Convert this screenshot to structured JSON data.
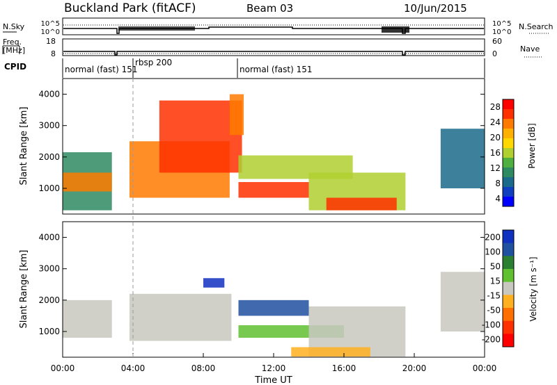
{
  "header": {
    "title": "Buckland Park (fitACF)",
    "beam": "Beam 03",
    "date": "10/Jun/2015"
  },
  "top_panels": {
    "nsky_label": "N.Sky",
    "nsearch_label": "N.Search",
    "nsky_ticks": [
      "10^5",
      "10^0"
    ],
    "freq_label_line1": "Freq.",
    "freq_label_line2": "[MHz]",
    "freq_ticks": [
      "18",
      "8"
    ],
    "nave_label": "Nave",
    "nave_ticks": [
      "60",
      "0"
    ],
    "cpid_label": "CPID",
    "cpid_segments": [
      {
        "label": "normal (fast) 151",
        "start_h": 0.0,
        "end_h": 3.8
      },
      {
        "label": "rbsp 200",
        "start_h": 3.8,
        "end_h": 10.0
      },
      {
        "label": "normal (fast) 151",
        "start_h": 10.0,
        "end_h": 24.0
      }
    ]
  },
  "chart_data": [
    {
      "type": "heatmap",
      "name": "power",
      "ylabel": "Slant Range [km]",
      "y_ticks": [
        1000,
        2000,
        3000,
        4000
      ],
      "ylim": [
        180,
        4500
      ],
      "xlim_hours": [
        0,
        24
      ],
      "colorbar_label": "Power [dB]",
      "colorbar_ticks": [
        "28",
        "24",
        "20",
        "16",
        "12",
        "8",
        "4"
      ],
      "colorbar_colors": [
        "#ff0000",
        "#ff3000",
        "#ff7a00",
        "#ffb000",
        "#ffd800",
        "#b0d030",
        "#4fb040",
        "#2e8a60",
        "#1a6a8a",
        "#1040c0",
        "#0000ff"
      ],
      "regions": [
        {
          "h0": 0.0,
          "h1": 2.8,
          "r0": 300,
          "r1": 2150,
          "level": 0.35
        },
        {
          "h0": 0.0,
          "h1": 2.8,
          "r0": 900,
          "r1": 1500,
          "level": 0.8
        },
        {
          "h0": 3.8,
          "h1": 9.5,
          "r0": 700,
          "r1": 2500,
          "level": 0.8
        },
        {
          "h0": 5.5,
          "h1": 10.2,
          "r0": 1500,
          "r1": 3800,
          "level": 0.92
        },
        {
          "h0": 9.5,
          "h1": 10.3,
          "r0": 2700,
          "r1": 4000,
          "level": 0.85
        },
        {
          "h0": 10.0,
          "h1": 16.5,
          "r0": 1300,
          "r1": 2050,
          "level": 0.5
        },
        {
          "h0": 10.0,
          "h1": 14.0,
          "r0": 700,
          "r1": 1200,
          "level": 0.9
        },
        {
          "h0": 14.0,
          "h1": 19.5,
          "r0": 300,
          "r1": 1500,
          "level": 0.55
        },
        {
          "h0": 15.0,
          "h1": 19.0,
          "r0": 300,
          "r1": 700,
          "level": 0.95
        },
        {
          "h0": 21.5,
          "h1": 24.0,
          "r0": 1000,
          "r1": 2900,
          "level": 0.2
        }
      ]
    },
    {
      "type": "heatmap",
      "name": "velocity",
      "ylabel": "Slant Range [km]",
      "xlabel": "Time UT",
      "x_ticks": [
        "00:00",
        "04:00",
        "08:00",
        "12:00",
        "16:00",
        "20:00",
        "00:00"
      ],
      "y_ticks": [
        1000,
        2000,
        3000,
        4000
      ],
      "ylim": [
        180,
        4500
      ],
      "xlim_hours": [
        0,
        24
      ],
      "colorbar_label": "Velocity [m s⁻¹]",
      "colorbar_ticks": [
        "200",
        "100",
        "50",
        "15",
        "-15",
        "-50",
        "-100",
        "-200"
      ],
      "colorbar_colors": [
        "#1030c0",
        "#2050a0",
        "#2a8030",
        "#60c030",
        "#c8c8c0",
        "#ffb020",
        "#ff7000",
        "#ff3000",
        "#ff0000"
      ],
      "regions": [
        {
          "h0": 0.0,
          "h1": 2.8,
          "r0": 800,
          "r1": 2000,
          "color": "#c8c8c0"
        },
        {
          "h0": 3.8,
          "h1": 9.6,
          "r0": 700,
          "r1": 2200,
          "color": "#c8c8c0"
        },
        {
          "h0": 8.0,
          "h1": 9.2,
          "r0": 2400,
          "r1": 2700,
          "color": "#1030c0"
        },
        {
          "h0": 10.0,
          "h1": 14.0,
          "r0": 1500,
          "r1": 2000,
          "color": "#2050a0"
        },
        {
          "h0": 10.0,
          "h1": 16.0,
          "r0": 800,
          "r1": 1200,
          "color": "#60c030"
        },
        {
          "h0": 14.0,
          "h1": 19.5,
          "r0": 200,
          "r1": 1800,
          "color": "#c8c8c0"
        },
        {
          "h0": 13.0,
          "h1": 17.5,
          "r0": 200,
          "r1": 500,
          "color": "#ffb020"
        },
        {
          "h0": 21.5,
          "h1": 24.0,
          "r0": 1000,
          "r1": 2900,
          "color": "#c8c8c0"
        }
      ]
    }
  ]
}
